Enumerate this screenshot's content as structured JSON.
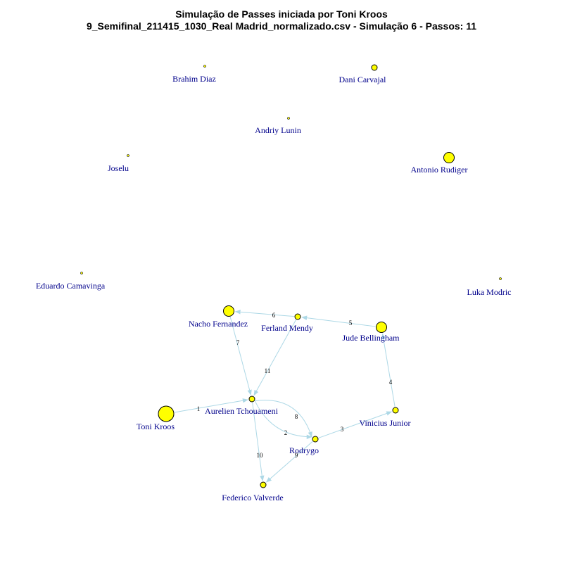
{
  "title": "Simulação de Passes iniciada por Toni Kroos",
  "subtitle": "9_Semifinal_211415_1030_Real Madrid_normalizado.csv - Simulação 6 - Passos: 11",
  "colors": {
    "node_fill": "#ffff00",
    "node_stroke": "#000000",
    "label": "#00008b",
    "edge": "#add8e6"
  },
  "nodes": [
    {
      "id": "brahim",
      "name": "Brahim Diaz",
      "size": "tiny"
    },
    {
      "id": "carvajal",
      "name": "Dani Carvajal",
      "size": "small"
    },
    {
      "id": "lunin",
      "name": "Andriy Lunin",
      "size": "tiny"
    },
    {
      "id": "joselu",
      "name": "Joselu",
      "size": "tiny"
    },
    {
      "id": "rudiger",
      "name": "Antonio Rudiger",
      "size": "medium"
    },
    {
      "id": "camavinga",
      "name": "Eduardo Camavinga",
      "size": "tiny"
    },
    {
      "id": "modric",
      "name": "Luka Modric",
      "size": "tiny"
    },
    {
      "id": "nacho",
      "name": "Nacho Fernandez",
      "size": "medium"
    },
    {
      "id": "mendy",
      "name": "Ferland Mendy",
      "size": "small"
    },
    {
      "id": "bellingham",
      "name": "Jude Bellingham",
      "size": "medium"
    },
    {
      "id": "tchouameni",
      "name": "Aurelien Tchouameni",
      "size": "small"
    },
    {
      "id": "kroos",
      "name": "Toni Kroos",
      "size": "large"
    },
    {
      "id": "vinicius",
      "name": "Vinicius Junior",
      "size": "small"
    },
    {
      "id": "rodrygo",
      "name": "Rodrygo",
      "size": "small"
    },
    {
      "id": "valverde",
      "name": "Federico Valverde",
      "size": "small"
    }
  ],
  "edges": [
    {
      "from": "kroos",
      "to": "tchouameni",
      "step": "1"
    },
    {
      "from": "tchouameni",
      "to": "rodrygo",
      "step": "2"
    },
    {
      "from": "rodrygo",
      "to": "vinicius",
      "step": "3"
    },
    {
      "from": "vinicius",
      "to": "bellingham",
      "step": "4"
    },
    {
      "from": "bellingham",
      "to": "mendy",
      "step": "5"
    },
    {
      "from": "mendy",
      "to": "nacho",
      "step": "6"
    },
    {
      "from": "nacho",
      "to": "tchouameni",
      "step": "7"
    },
    {
      "from": "tchouameni",
      "to": "rodrygo",
      "step": "8"
    },
    {
      "from": "rodrygo",
      "to": "valverde",
      "step": "9"
    },
    {
      "from": "tchouameni",
      "to": "valverde",
      "step": "10"
    },
    {
      "from": "mendy",
      "to": "tchouameni",
      "step": "11"
    }
  ]
}
